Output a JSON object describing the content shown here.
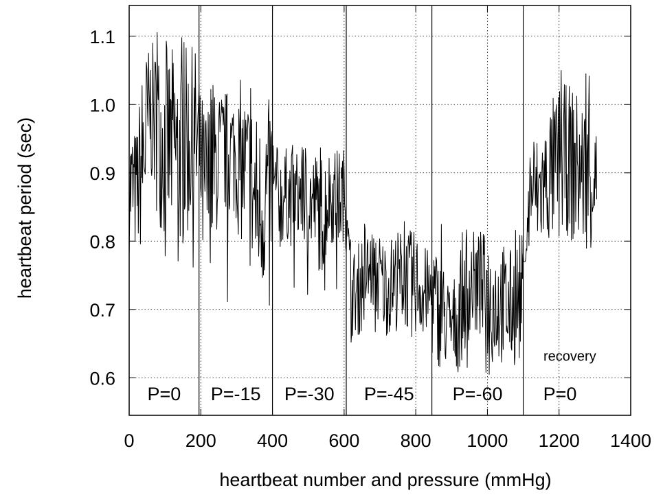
{
  "chart_data": {
    "type": "line",
    "title": "",
    "xlabel": "heartbeat number and pressure (mmHg)",
    "ylabel": "heartbeat period  (sec)",
    "xlim": [
      0,
      1400
    ],
    "ylim": [
      0.545,
      1.145
    ],
    "x_ticks": [
      0,
      200,
      400,
      600,
      800,
      1000,
      1200,
      1400
    ],
    "x_tick_labels": [
      "0",
      "200",
      "400",
      "600",
      "800",
      "1000",
      "1200",
      "1400"
    ],
    "y_ticks": [
      0.6,
      0.7,
      0.8,
      0.9,
      1.0,
      1.1
    ],
    "y_tick_labels": [
      "0.6",
      "0.7",
      "0.8",
      "0.9",
      "1.0",
      "1.1"
    ],
    "grid": true,
    "grid_style": "dotted",
    "legend": "none",
    "phase_boundaries": [
      195,
      400,
      606,
      845,
      1100
    ],
    "phases": [
      {
        "label": "P=0",
        "x_start": 0,
        "x_end": 195,
        "mean_period": 0.95,
        "min": 0.76,
        "max": 1.11
      },
      {
        "label": "P=-15",
        "x_start": 195,
        "x_end": 400,
        "mean_period": 0.9,
        "min": 0.7,
        "max": 1.04
      },
      {
        "label": "P=-30",
        "x_start": 400,
        "x_end": 606,
        "mean_period": 0.86,
        "min": 0.72,
        "max": 0.95
      },
      {
        "label": "P=-45",
        "x_start": 606,
        "x_end": 845,
        "mean_period": 0.74,
        "min": 0.65,
        "max": 0.83
      },
      {
        "label": "P=-60",
        "x_start": 845,
        "x_end": 1100,
        "mean_period": 0.71,
        "min": 0.6,
        "max": 0.83
      },
      {
        "label": "P=0",
        "x_start": 1100,
        "x_end": 1305,
        "mean_period": 0.9,
        "min": 0.77,
        "max": 1.05
      }
    ],
    "annotations": [
      {
        "text": "recovery",
        "x": 1230,
        "y": 0.625
      }
    ],
    "series": [
      {
        "values": [
          [
            0,
            0.88
          ],
          [
            20,
            0.87
          ],
          [
            40,
            0.93
          ],
          [
            60,
            0.99
          ],
          [
            80,
            0.96
          ],
          [
            100,
            0.94
          ],
          [
            120,
            0.94
          ],
          [
            140,
            0.93
          ],
          [
            160,
            0.94
          ],
          [
            180,
            0.95
          ],
          [
            195,
            0.93
          ],
          [
            210,
            0.86
          ],
          [
            230,
            0.9
          ],
          [
            250,
            0.92
          ],
          [
            270,
            0.93
          ],
          [
            290,
            0.93
          ],
          [
            310,
            0.91
          ],
          [
            330,
            0.9
          ],
          [
            350,
            0.86
          ],
          [
            370,
            0.85
          ],
          [
            390,
            0.88
          ],
          [
            400,
            0.87
          ],
          [
            420,
            0.86
          ],
          [
            440,
            0.87
          ],
          [
            460,
            0.86
          ],
          [
            480,
            0.87
          ],
          [
            500,
            0.86
          ],
          [
            520,
            0.85
          ],
          [
            540,
            0.84
          ],
          [
            560,
            0.87
          ],
          [
            580,
            0.86
          ],
          [
            600,
            0.87
          ],
          [
            606,
            0.86
          ],
          [
            620,
            0.72
          ],
          [
            640,
            0.73
          ],
          [
            660,
            0.75
          ],
          [
            680,
            0.76
          ],
          [
            700,
            0.74
          ],
          [
            720,
            0.73
          ],
          [
            740,
            0.74
          ],
          [
            760,
            0.75
          ],
          [
            780,
            0.74
          ],
          [
            800,
            0.74
          ],
          [
            820,
            0.73
          ],
          [
            845,
            0.72
          ],
          [
            860,
            0.7
          ],
          [
            880,
            0.69
          ],
          [
            900,
            0.67
          ],
          [
            920,
            0.7
          ],
          [
            940,
            0.73
          ],
          [
            960,
            0.74
          ],
          [
            980,
            0.73
          ],
          [
            1000,
            0.72
          ],
          [
            1020,
            0.71
          ],
          [
            1040,
            0.71
          ],
          [
            1060,
            0.7
          ],
          [
            1080,
            0.71
          ],
          [
            1100,
            0.72
          ],
          [
            1120,
            0.88
          ],
          [
            1140,
            0.87
          ],
          [
            1160,
            0.88
          ],
          [
            1180,
            0.9
          ],
          [
            1200,
            0.91
          ],
          [
            1220,
            0.92
          ],
          [
            1240,
            0.91
          ],
          [
            1260,
            0.9
          ],
          [
            1280,
            0.9
          ],
          [
            1300,
            0.9
          ],
          [
            1305,
            0.88
          ]
        ]
      }
    ]
  }
}
